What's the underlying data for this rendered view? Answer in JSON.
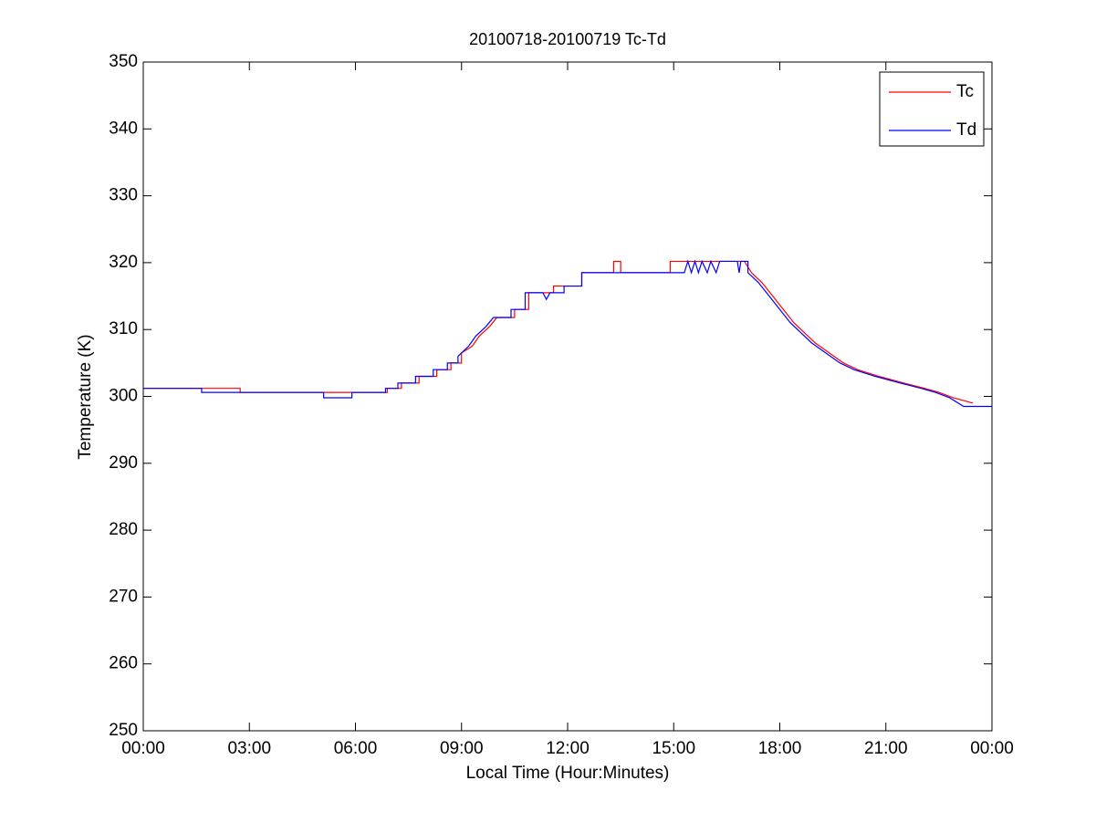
{
  "chart_data": {
    "type": "line",
    "title": "20100718-20100719 Tc-Td",
    "xlabel": "Local Time (Hour:Minutes)",
    "ylabel": "Temperature (K)",
    "xlim": [
      0,
      24
    ],
    "xticks": [
      {
        "value": 0,
        "label": "00:00"
      },
      {
        "value": 3,
        "label": "03:00"
      },
      {
        "value": 6,
        "label": "06:00"
      },
      {
        "value": 9,
        "label": "09:00"
      },
      {
        "value": 12,
        "label": "12:00"
      },
      {
        "value": 15,
        "label": "15:00"
      },
      {
        "value": 18,
        "label": "18:00"
      },
      {
        "value": 21,
        "label": "21:00"
      },
      {
        "value": 24,
        "label": "00:00"
      }
    ],
    "ylim": [
      250,
      350
    ],
    "yticks": [
      250,
      260,
      270,
      280,
      290,
      300,
      310,
      320,
      330,
      340,
      350
    ],
    "grid": false,
    "legend": "upper right",
    "series": [
      {
        "name": "Tc",
        "color": "#ff0000",
        "x": [
          0,
          2.74,
          2.74,
          6.9,
          6.9,
          7.3,
          7.3,
          7.8,
          7.8,
          8.3,
          8.3,
          8.7,
          8.7,
          9.0,
          9.0,
          9.3,
          9.5,
          9.8,
          10.0,
          10.5,
          10.5,
          10.9,
          10.9,
          11.6,
          11.6,
          12.4,
          12.4,
          13.3,
          13.3,
          13.5,
          13.5,
          14.9,
          14.9,
          17.0,
          17.2,
          17.5,
          17.8,
          18.1,
          18.4,
          18.7,
          19.0,
          19.4,
          19.8,
          20.2,
          20.8,
          21.5,
          22.1,
          22.5,
          22.9,
          23.46
        ],
        "values": [
          301.2,
          301.2,
          300.6,
          300.6,
          301.2,
          301.2,
          302,
          302,
          303,
          303,
          304,
          304,
          305,
          305,
          306.5,
          307.5,
          309,
          310.5,
          311.8,
          311.8,
          313,
          313,
          315.5,
          315.5,
          316.5,
          316.5,
          318.5,
          318.5,
          320.2,
          320.2,
          318.5,
          318.5,
          320.2,
          320.2,
          318.5,
          317,
          315,
          313,
          311,
          309.5,
          308,
          306.5,
          305,
          304,
          303,
          302,
          301.2,
          300.6,
          299.8,
          299.0
        ]
      },
      {
        "name": "Td",
        "color": "#0000ff",
        "x": [
          0,
          1.65,
          1.65,
          5.1,
          5.1,
          5.9,
          5.9,
          6.85,
          6.85,
          7.2,
          7.2,
          7.7,
          7.7,
          8.2,
          8.2,
          8.6,
          8.6,
          8.9,
          8.9,
          9.2,
          9.4,
          9.7,
          9.9,
          10.4,
          10.4,
          10.8,
          10.8,
          11.3,
          11.4,
          11.5,
          11.9,
          11.9,
          12.4,
          12.4,
          15.3,
          15.4,
          15.5,
          15.6,
          15.7,
          15.8,
          15.95,
          16.05,
          16.2,
          16.3,
          16.8,
          16.85,
          16.9,
          17.1,
          17.1,
          17.4,
          17.7,
          18.0,
          18.3,
          18.6,
          18.9,
          19.3,
          19.7,
          20.1,
          20.7,
          21.4,
          22.0,
          22.4,
          22.8,
          23.2,
          24
        ],
        "values": [
          301.2,
          301.2,
          300.6,
          300.6,
          299.8,
          299.8,
          300.6,
          300.6,
          301.2,
          301.2,
          302,
          302,
          303,
          303,
          304,
          304,
          305,
          305,
          306,
          307.5,
          309,
          310.5,
          311.8,
          311.8,
          313,
          313,
          315.5,
          315.5,
          314.5,
          315.5,
          315.5,
          316.5,
          316.5,
          318.5,
          318.5,
          320.2,
          318.5,
          320.2,
          318.5,
          320.2,
          318.5,
          320.2,
          318.5,
          320.2,
          320.2,
          318.5,
          320.2,
          320.2,
          318.5,
          317,
          315,
          313,
          311,
          309.5,
          308,
          306.5,
          305,
          304,
          303,
          302,
          301.2,
          300.6,
          299.8,
          298.5,
          298.5
        ]
      }
    ]
  }
}
